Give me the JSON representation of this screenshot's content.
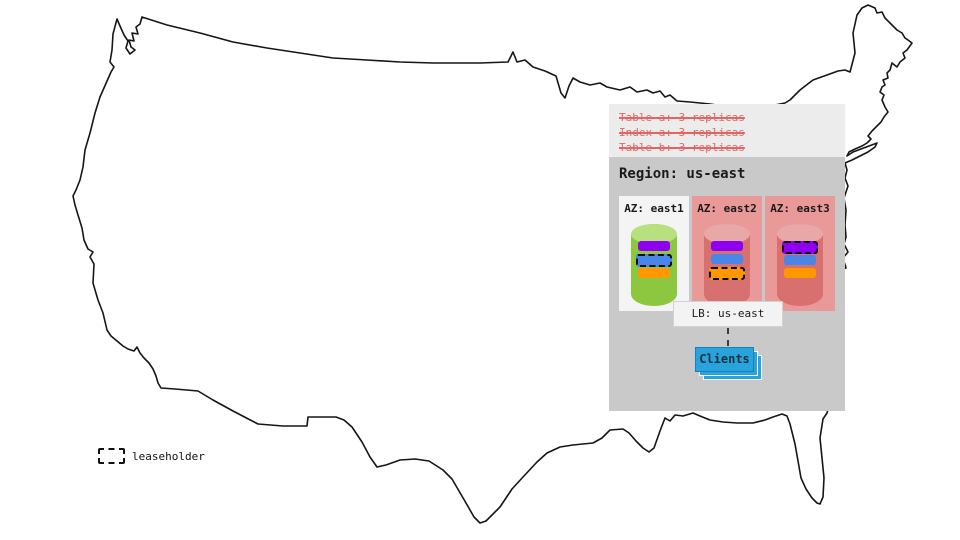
{
  "legend": {
    "leaseholder_label": "leaseholder"
  },
  "overlay": {
    "policies": [
      "Table a: 3 replicas",
      "Index a: 3 replicas",
      "Table b: 3 replicas"
    ],
    "region": {
      "title": "Region: us-east",
      "azs": [
        {
          "label": "AZ: east1",
          "style": "plain",
          "cylinder": "green",
          "replicas": [
            {
              "color": "purple",
              "leaseholder": false
            },
            {
              "color": "blue",
              "leaseholder": true
            },
            {
              "color": "orange",
              "leaseholder": false
            }
          ]
        },
        {
          "label": "AZ: east2",
          "style": "pink",
          "cylinder": "red",
          "replicas": [
            {
              "color": "purple",
              "leaseholder": false
            },
            {
              "color": "blue",
              "leaseholder": false
            },
            {
              "color": "orange",
              "leaseholder": true
            }
          ]
        },
        {
          "label": "AZ: east3",
          "style": "pink",
          "cylinder": "red",
          "replicas": [
            {
              "color": "purple",
              "leaseholder": true
            },
            {
              "color": "blue",
              "leaseholder": false
            },
            {
              "color": "orange",
              "leaseholder": false
            }
          ]
        }
      ],
      "lb_label": "LB: us-east",
      "clients_label": "Clients"
    }
  },
  "colors": {
    "panel_top_bg": "#ececec",
    "region_bg": "#c9c9c9",
    "az_plain_bg": "#f4f4f4",
    "az_pink_bg": "#ea9999",
    "policy_red": "#e06666",
    "cyl_green": "#8dc63f",
    "cyl_green_top": "#b9e07f",
    "cyl_red": "#d97070",
    "cyl_red_top": "#e9a8a8",
    "lb_bg": "#f3f3f3",
    "clients_blue": "#29a3dc",
    "map_stroke": "#161616",
    "replica": {
      "purple": "#8e00f0",
      "blue": "#4a86e8",
      "orange": "#ff9800"
    }
  }
}
